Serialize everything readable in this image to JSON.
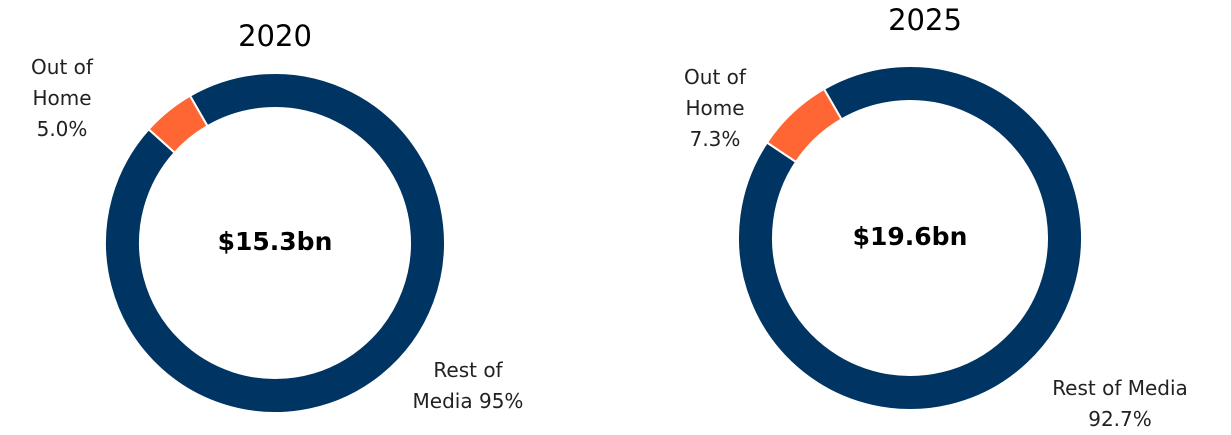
{
  "chart_data": [
    {
      "type": "pie",
      "title": "2020",
      "center_text": "$15.3bn",
      "categories": [
        "Rest of Media",
        "Out of Home"
      ],
      "values": [
        95,
        5.0
      ],
      "value_labels": [
        "95%",
        "5.0%"
      ],
      "colors": [
        "#003462",
        "#ff6633"
      ]
    },
    {
      "type": "pie",
      "title": "2025",
      "center_text": "$19.6bn",
      "categories": [
        "Rest of Media",
        "Out of Home"
      ],
      "values": [
        92.7,
        7.3
      ],
      "value_labels": [
        "92.7%",
        "7.3%"
      ],
      "colors": [
        "#003462",
        "#ff6633"
      ]
    }
  ]
}
